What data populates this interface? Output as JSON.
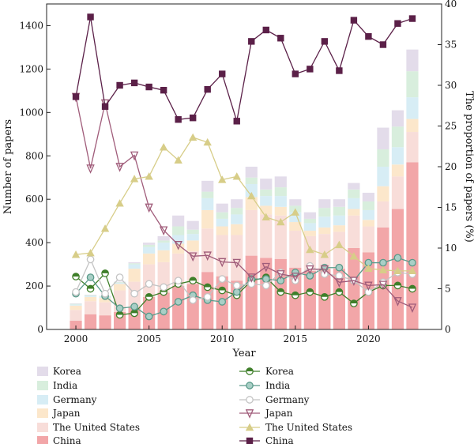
{
  "chart_data": {
    "type": "bar+line",
    "x": [
      2000,
      2001,
      2002,
      2003,
      2004,
      2005,
      2006,
      2007,
      2008,
      2009,
      2010,
      2011,
      2012,
      2013,
      2014,
      2015,
      2016,
      2017,
      2018,
      2019,
      2020,
      2021,
      2022,
      2023
    ],
    "xticks": [
      2000,
      2005,
      2010,
      2015,
      2020
    ],
    "xlabel": "Year",
    "ylabel_left": "Number of papers",
    "ylabel_right": "The proportion of papers (%)",
    "ylim_left": [
      0,
      1500
    ],
    "yticks_left": [
      0,
      200,
      400,
      600,
      800,
      1000,
      1200,
      1400
    ],
    "ylim_right": [
      0,
      40
    ],
    "yticks_right": [
      0,
      5,
      10,
      15,
      20,
      25,
      30,
      35,
      40
    ],
    "bar_series": [
      {
        "name": "China",
        "color": "#f2a6a8",
        "values": [
          40,
          70,
          65,
          80,
          100,
          150,
          170,
          200,
          210,
          265,
          245,
          225,
          340,
          330,
          325,
          285,
          270,
          280,
          280,
          375,
          355,
          470,
          555,
          770
        ]
      },
      {
        "name": "The United States",
        "color": "#f8ddd9",
        "values": [
          50,
          60,
          60,
          100,
          120,
          150,
          140,
          150,
          150,
          200,
          190,
          210,
          210,
          200,
          200,
          170,
          160,
          160,
          170,
          150,
          120,
          120,
          150,
          140
        ]
      },
      {
        "name": "Japan",
        "color": "#fce7cb",
        "values": [
          20,
          20,
          20,
          30,
          60,
          50,
          55,
          45,
          50,
          85,
          40,
          50,
          60,
          40,
          40,
          40,
          25,
          30,
          30,
          30,
          30,
          70,
          55,
          60
        ]
      },
      {
        "name": "Germany",
        "color": "#d7edf5",
        "values": [
          5,
          5,
          5,
          5,
          20,
          30,
          35,
          40,
          30,
          55,
          35,
          45,
          60,
          45,
          50,
          45,
          35,
          50,
          45,
          50,
          45,
          90,
          80,
          100
        ]
      },
      {
        "name": "India",
        "color": "#d8eedd",
        "values": [
          3,
          3,
          3,
          3,
          5,
          10,
          10,
          40,
          20,
          30,
          30,
          30,
          30,
          30,
          40,
          30,
          20,
          40,
          40,
          40,
          40,
          80,
          95,
          120
        ]
      },
      {
        "name": "Korea",
        "color": "#e3dcea",
        "values": [
          2,
          2,
          2,
          2,
          5,
          10,
          20,
          50,
          40,
          50,
          40,
          40,
          50,
          50,
          50,
          30,
          30,
          40,
          35,
          30,
          40,
          100,
          75,
          100
        ]
      }
    ],
    "line_series": [
      {
        "name": "Korea",
        "color": "#3f7f2a",
        "marker": "half-circle",
        "values": [
          6.5,
          5.0,
          6.9,
          1.8,
          2.0,
          4.0,
          4.6,
          5.6,
          6.0,
          5.2,
          4.8,
          4.2,
          6.0,
          6.4,
          4.6,
          4.2,
          4.6,
          4.0,
          4.6,
          3.2,
          4.6,
          5.4,
          5.4,
          5.0
        ]
      },
      {
        "name": "India",
        "color": "#5a9a8a",
        "marker": "circle",
        "values": [
          4.4,
          6.4,
          4.1,
          2.6,
          2.8,
          1.6,
          2.2,
          3.4,
          4.2,
          3.6,
          3.4,
          4.6,
          6.2,
          6.2,
          6.0,
          7.0,
          6.6,
          7.6,
          7.6,
          6.0,
          8.2,
          8.2,
          8.8,
          8.2
        ]
      },
      {
        "name": "Germany",
        "color": "#c4c4c4",
        "marker": "open-circle",
        "values": [
          4.6,
          8.6,
          4.4,
          6.4,
          4.4,
          5.6,
          5.2,
          6.0,
          3.6,
          4.0,
          6.2,
          5.4,
          5.6,
          5.4,
          7.0,
          6.0,
          7.8,
          6.8,
          6.6,
          6.0,
          4.6,
          5.8,
          7.0,
          6.8
        ]
      },
      {
        "name": "Japan",
        "color": "#a05c7a",
        "marker": "down-triangle",
        "values": [
          28.6,
          19.8,
          27.8,
          20.0,
          21.4,
          15.0,
          12.2,
          10.4,
          9.0,
          9.1,
          8.3,
          8.2,
          6.4,
          7.7,
          6.8,
          6.5,
          7.4,
          7.4,
          5.8,
          6.0,
          5.4,
          5.5,
          3.5,
          2.7
        ]
      },
      {
        "name": "The United States",
        "color": "#d7cd88",
        "marker": "triangle",
        "values": [
          9.2,
          9.4,
          12.4,
          15.5,
          18.5,
          18.8,
          22.4,
          20.8,
          23.6,
          23.0,
          18.4,
          18.8,
          16.4,
          13.8,
          13.2,
          14.4,
          9.8,
          9.2,
          10.4,
          9.0,
          7.5,
          7.3,
          7.2,
          7.2
        ]
      },
      {
        "name": "China",
        "color": "#5b2048",
        "marker": "square",
        "values": [
          28.6,
          38.4,
          27.4,
          30.0,
          30.3,
          29.8,
          29.4,
          25.8,
          26.0,
          29.5,
          31.4,
          25.6,
          35.4,
          36.8,
          35.8,
          31.4,
          32.0,
          35.4,
          31.8,
          38.0,
          36.0,
          35.0,
          37.6,
          38.2
        ]
      }
    ]
  }
}
